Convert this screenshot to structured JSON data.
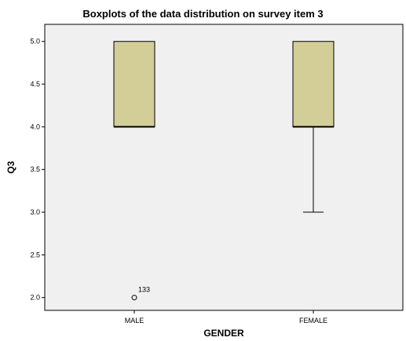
{
  "chart_data": {
    "type": "boxplot",
    "title": "Boxplots of the data distribution on survey item 3",
    "xlabel": "GENDER",
    "ylabel": "Q3",
    "categories": [
      "MALE",
      "FEMALE"
    ],
    "ylim": [
      1.85,
      5.2
    ],
    "yticks": [
      "2.0",
      "2.5",
      "3.0",
      "3.5",
      "4.0",
      "4.5",
      "5.0"
    ],
    "boxes": [
      {
        "category": "MALE",
        "min": 4.0,
        "q1": 4.0,
        "median": 4.0,
        "q3": 5.0,
        "max": 5.0,
        "outliers": [
          {
            "value": 2.0,
            "label": "133"
          }
        ]
      },
      {
        "category": "FEMALE",
        "min": 3.0,
        "q1": 4.0,
        "median": 4.0,
        "q3": 5.0,
        "max": 5.0,
        "outliers": []
      }
    ],
    "grid": false,
    "colors": {
      "box_fill": "#d3cd97",
      "plot_background": "#f0f0f0",
      "outline": "#000000"
    }
  }
}
